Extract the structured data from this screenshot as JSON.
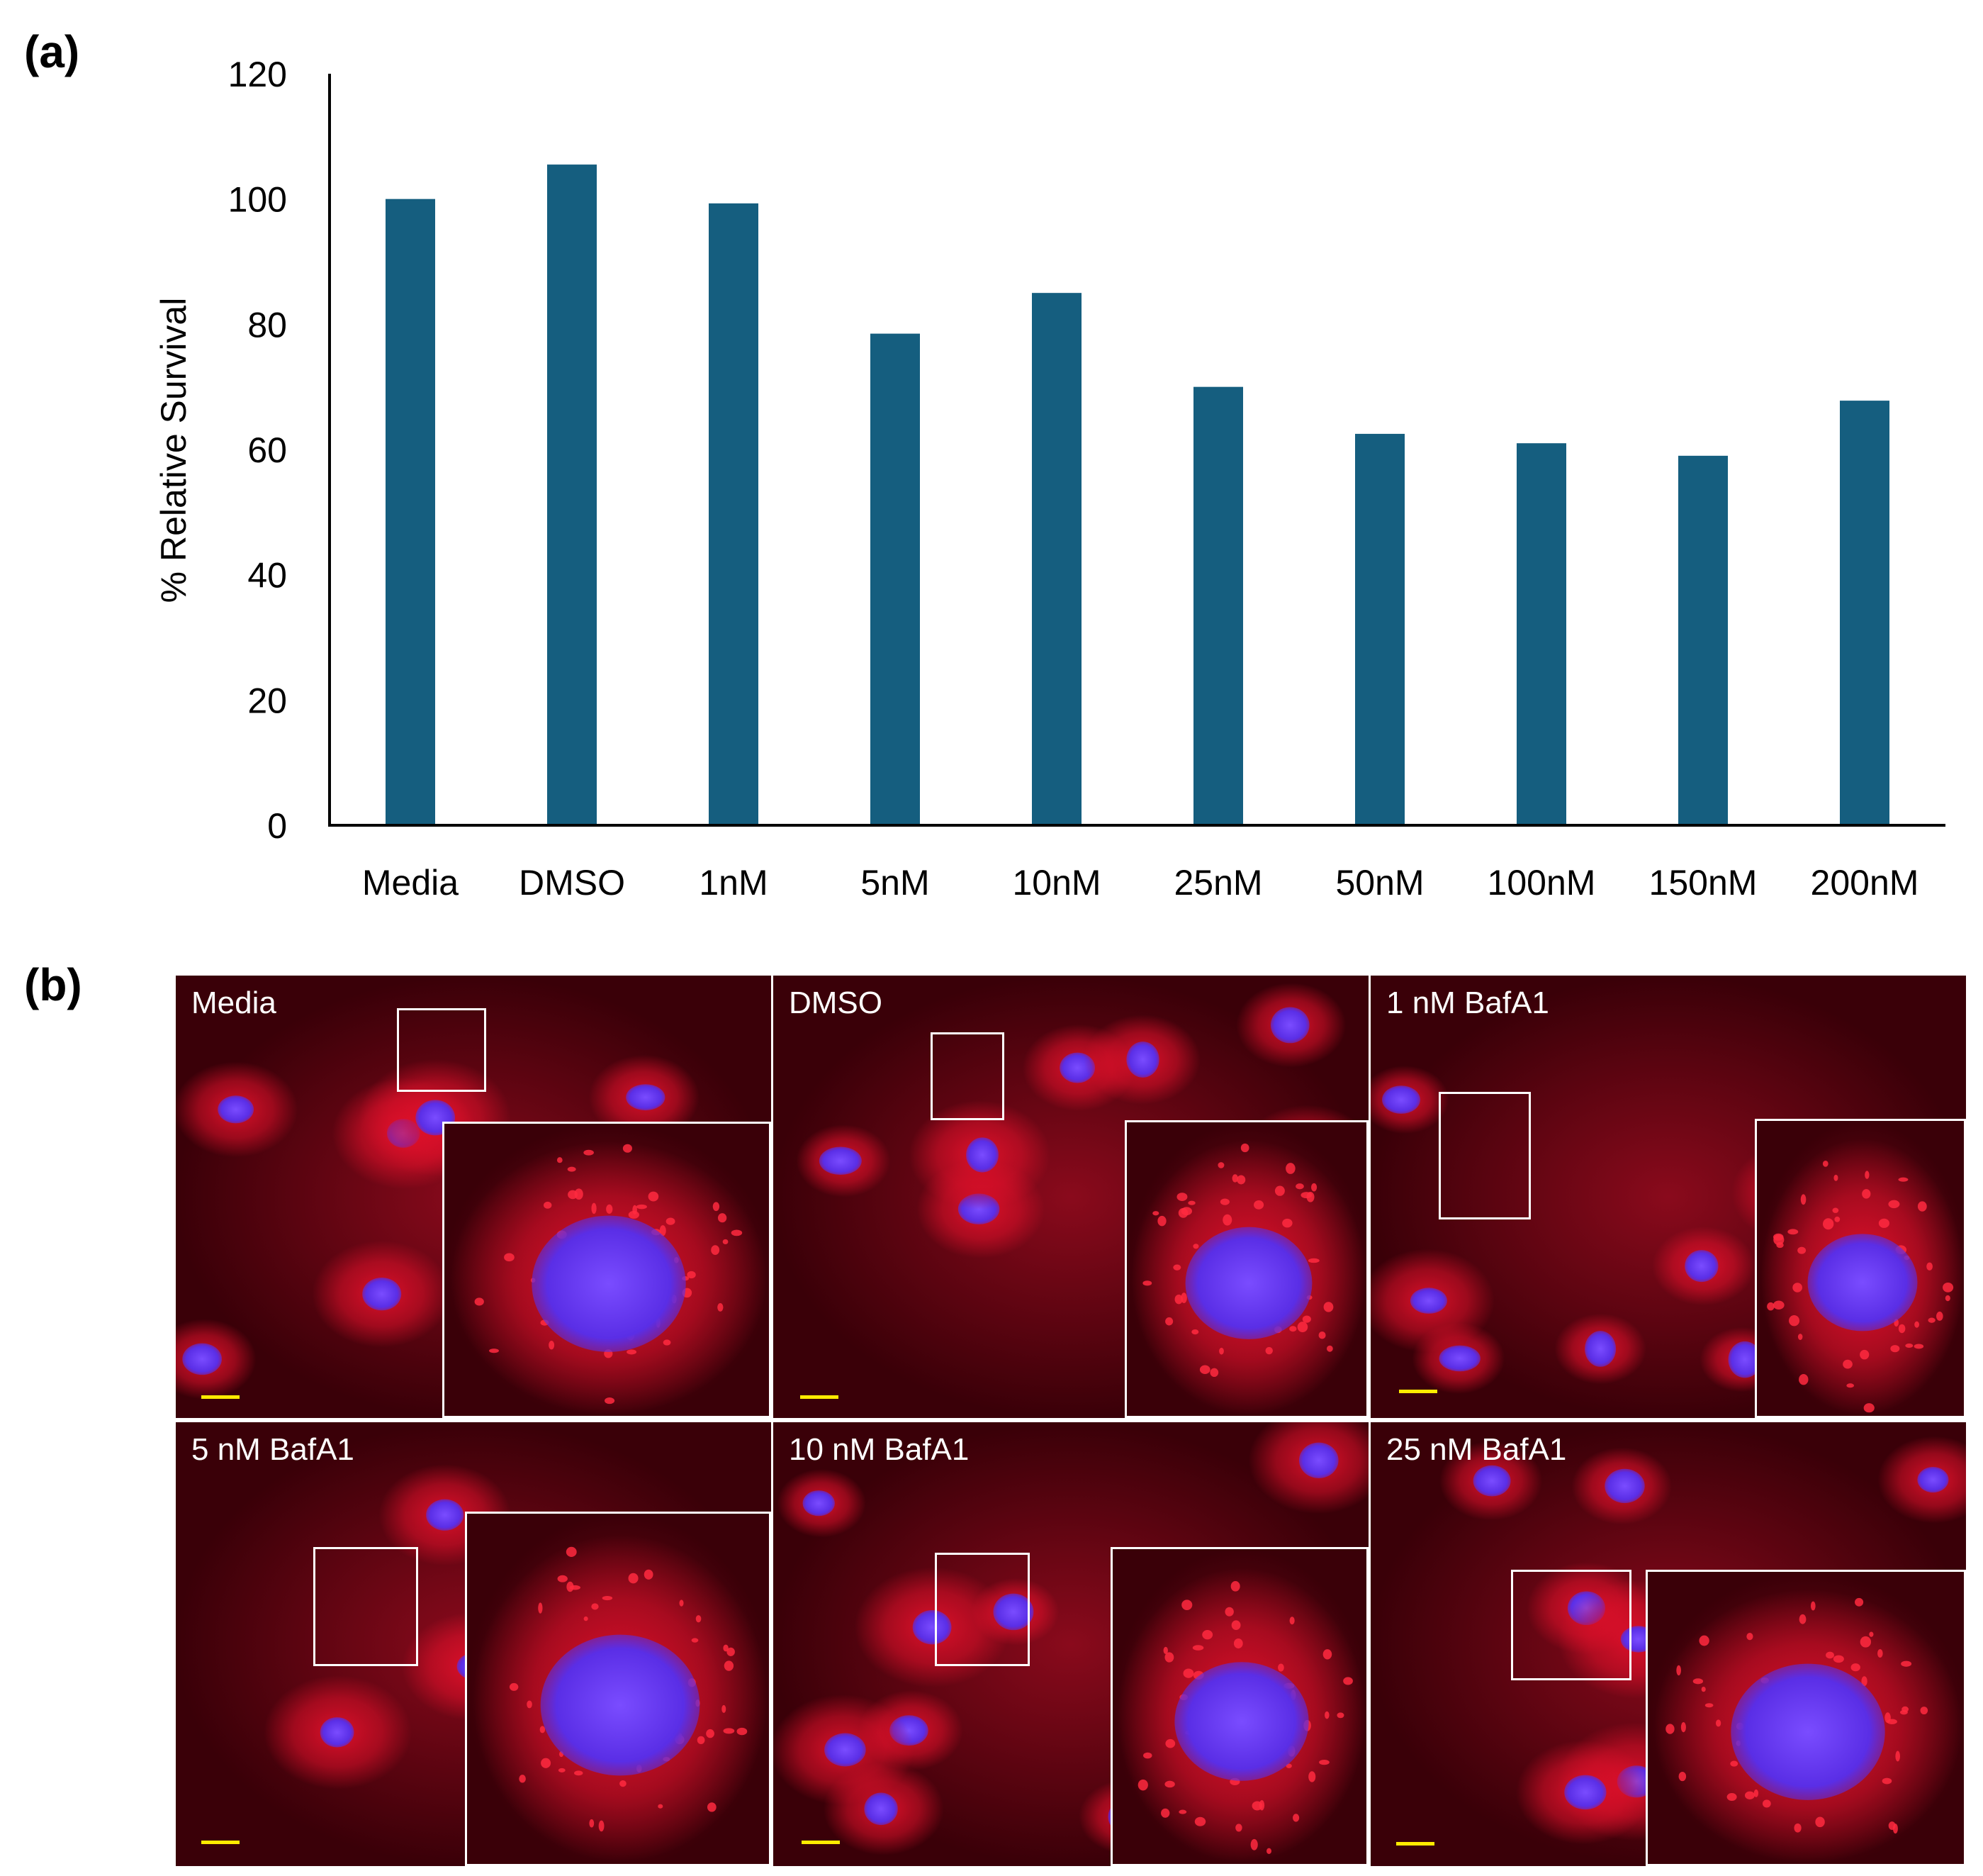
{
  "panel_labels": {
    "a": "(a)",
    "b": "(b)"
  },
  "chart_data": {
    "type": "bar",
    "title": "",
    "xlabel": "",
    "ylabel": "% Relative Survival",
    "categories": [
      "Media",
      "DMSO",
      "1nM",
      "5nM",
      "10nM",
      "25nM",
      "50nM",
      "100nM",
      "150nM",
      "200nM"
    ],
    "values": [
      100,
      105.5,
      99.3,
      78.5,
      85,
      70,
      62.5,
      61,
      59,
      67.8
    ],
    "ylim": [
      0,
      120
    ],
    "yticks": [
      0,
      20,
      40,
      60,
      80,
      100,
      120
    ],
    "bar_color": "#155e7f",
    "grid": false,
    "legend": "none"
  },
  "micrographs": {
    "panels": [
      {
        "label": "Media"
      },
      {
        "label": "DMSO"
      },
      {
        "label": "1 nM BafA1"
      },
      {
        "label": "5 nM BafA1"
      },
      {
        "label": "10 nM BafA1"
      },
      {
        "label": "25 nM BafA1"
      }
    ],
    "colors": {
      "cytoplasm": "#e0102a",
      "nucleus": "#5a2ee6",
      "scale_bar": "#ffeb00",
      "background": "#3a0008"
    }
  }
}
